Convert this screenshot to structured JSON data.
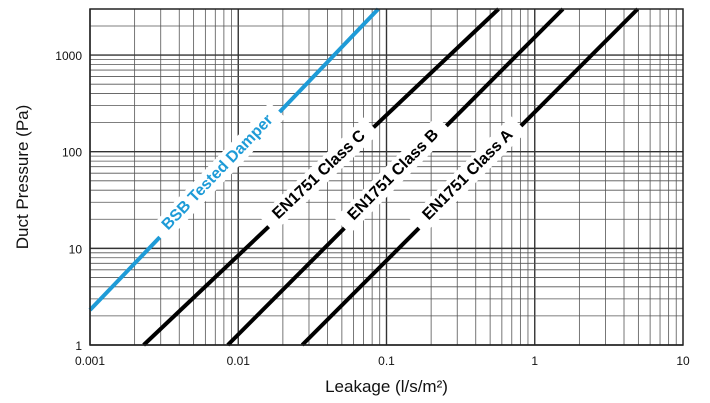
{
  "chart_data": {
    "type": "line",
    "title": "",
    "xlabel": "Leakage (l/s/m²)",
    "ylabel": "Duct Pressure (Pa)",
    "xscale": "log",
    "yscale": "log",
    "xlim": [
      0.001,
      10
    ],
    "ylim": [
      1,
      3000
    ],
    "x_ticks": [
      "0.001",
      "0.01",
      "0.1",
      "1",
      "10"
    ],
    "y_ticks": [
      "1",
      "10",
      "100",
      "1000"
    ],
    "grid": true,
    "series": [
      {
        "name": "BSB Tested Damper",
        "color": "#1e9bd7",
        "x": [
          0.001,
          0.088
        ],
        "y": [
          2.3,
          3000
        ]
      },
      {
        "name": "EN1751 Class C",
        "color": "#000000",
        "x": [
          0.0023,
          0.57
        ],
        "y": [
          1,
          3000
        ]
      },
      {
        "name": "EN1751 Class B",
        "color": "#000000",
        "x": [
          0.0085,
          1.55
        ],
        "y": [
          1,
          3000
        ]
      },
      {
        "name": "EN1751 Class A",
        "color": "#000000",
        "x": [
          0.027,
          4.95
        ],
        "y": [
          1,
          3000
        ]
      }
    ]
  }
}
